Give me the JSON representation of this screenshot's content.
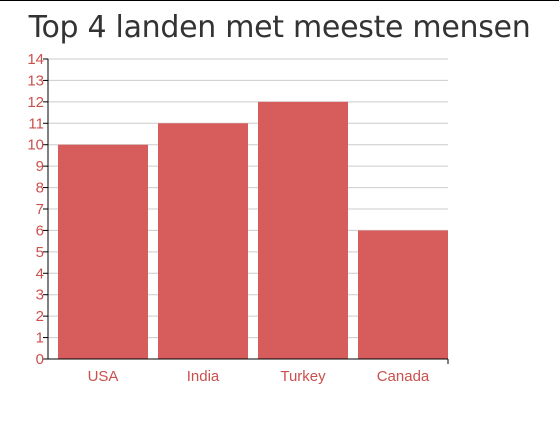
{
  "chart_data": {
    "type": "bar",
    "title": "Top 4 landen met meeste mensen",
    "categories": [
      "USA",
      "India",
      "Turkey",
      "Canada"
    ],
    "values": [
      10,
      11,
      12,
      6
    ],
    "xlabel": "",
    "ylabel": "",
    "ylim": [
      0,
      14
    ],
    "yticks": [
      "0",
      "1",
      "2",
      "3",
      "4",
      "5",
      "6",
      "7",
      "8",
      "9",
      "10",
      "11",
      "12",
      "13",
      "14"
    ],
    "grid": true,
    "legend": "none",
    "colors": {
      "bar": "#d65d5b",
      "tick_label": "#c9504c",
      "grid": "#cccccc",
      "axis": "#000000",
      "title": "#333333"
    }
  }
}
